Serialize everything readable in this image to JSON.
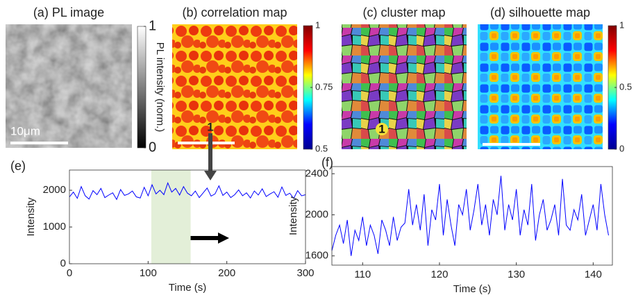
{
  "chart_data": [
    {
      "type": "image",
      "title": "(a) PL image",
      "colormap": "gray",
      "clim": [
        0,
        1
      ],
      "cticks": [
        0,
        1
      ],
      "colorbar_label": "PL intensity (norm.)",
      "scale_bar": "10μm"
    },
    {
      "type": "image",
      "title": "(b) correlation map",
      "colormap": "jet",
      "clim": [
        0.5,
        1
      ],
      "cticks": [
        0.5,
        0.75,
        1
      ],
      "annotation": "1"
    },
    {
      "type": "image",
      "title": "(c) cluster map",
      "annotation": "1"
    },
    {
      "type": "image",
      "title": "(d) silhouette map",
      "colormap": "jet",
      "clim": [
        0,
        1
      ],
      "cticks": [
        0,
        0.5,
        1
      ]
    },
    {
      "type": "line",
      "panel_label": "(e)",
      "xlabel": "Time (s)",
      "ylabel": "Intensity",
      "xlim": [
        0,
        300
      ],
      "xticks": [
        0,
        100,
        200,
        300
      ],
      "ylim": [
        0,
        2550
      ],
      "yticks": [
        0,
        1000,
        2000
      ],
      "highlight": [
        104,
        154
      ],
      "highlight_color": "#e3efd8",
      "x": [
        0,
        5,
        10,
        15,
        20,
        25,
        30,
        35,
        40,
        45,
        50,
        55,
        60,
        65,
        70,
        75,
        80,
        85,
        90,
        95,
        100,
        105,
        110,
        115,
        120,
        125,
        130,
        135,
        140,
        145,
        150,
        155,
        160,
        165,
        170,
        175,
        180,
        185,
        190,
        195,
        200,
        205,
        210,
        215,
        220,
        225,
        230,
        235,
        240,
        245,
        250,
        255,
        260,
        265,
        270,
        275,
        280,
        285,
        290,
        295,
        300
      ],
      "series": [
        {
          "color": "#0000ff",
          "values": [
            1820,
            1950,
            1780,
            2100,
            1850,
            1760,
            1990,
            1880,
            2050,
            1800,
            1870,
            1930,
            1750,
            2020,
            1860,
            1900,
            1980,
            1820,
            1790,
            2080,
            1850,
            2150,
            1900,
            2000,
            1880,
            2200,
            1950,
            2050,
            1870,
            2100,
            1920,
            1850,
            1980,
            1800,
            1930,
            2060,
            1840,
            1900,
            2120,
            1860,
            1950,
            1800,
            1880,
            2010,
            1850,
            1930,
            1790,
            1980,
            1870,
            2040,
            1830,
            1900,
            1960,
            1810,
            2090,
            1860,
            1920,
            1780,
            1990,
            1850,
            1880
          ]
        }
      ]
    },
    {
      "type": "line",
      "panel_label": "(f)",
      "xlabel": "Time (s)",
      "ylabel": "Intensity",
      "xlim": [
        106,
        142.5
      ],
      "xticks": [
        110,
        120,
        130,
        140
      ],
      "ylim": [
        1510,
        2470
      ],
      "yticks": [
        1600,
        2000,
        2400
      ],
      "x": [
        106,
        106.5,
        107,
        107.5,
        108,
        108.5,
        109,
        109.5,
        110,
        110.5,
        111,
        111.5,
        112,
        112.5,
        113,
        113.5,
        114,
        114.5,
        115,
        115.5,
        116,
        116.5,
        117,
        117.5,
        118,
        118.5,
        119,
        119.5,
        120,
        120.5,
        121,
        121.5,
        122,
        122.5,
        123,
        123.5,
        124,
        124.5,
        125,
        125.5,
        126,
        126.5,
        127,
        127.5,
        128,
        128.5,
        129,
        129.5,
        130,
        130.5,
        131,
        131.5,
        132,
        132.5,
        133,
        133.5,
        134,
        134.5,
        135,
        135.5,
        136,
        136.5,
        137,
        137.5,
        138,
        138.5,
        139,
        139.5,
        140,
        140.5,
        141,
        141.5,
        142
      ],
      "series": [
        {
          "color": "#0000ff",
          "values": [
            1650,
            1800,
            1900,
            1720,
            1950,
            1600,
            1850,
            1750,
            1980,
            1700,
            1900,
            1800,
            1620,
            1950,
            1850,
            1700,
            1980,
            1750,
            1880,
            1920,
            2250,
            1900,
            2100,
            1850,
            2200,
            1700,
            2050,
            1950,
            2300,
            1800,
            2150,
            1900,
            1700,
            2100,
            2000,
            2250,
            1850,
            2050,
            2300,
            1900,
            2100,
            1800,
            2150,
            2000,
            2380,
            1850,
            2100,
            1950,
            2250,
            1800,
            2050,
            1900,
            2300,
            1750,
            2000,
            2150,
            1850,
            1950,
            2100,
            1800,
            2350,
            1900,
            1850,
            2050,
            1950,
            2200,
            1800,
            1950,
            2100,
            1850,
            2300,
            2000,
            1800
          ]
        }
      ]
    }
  ]
}
